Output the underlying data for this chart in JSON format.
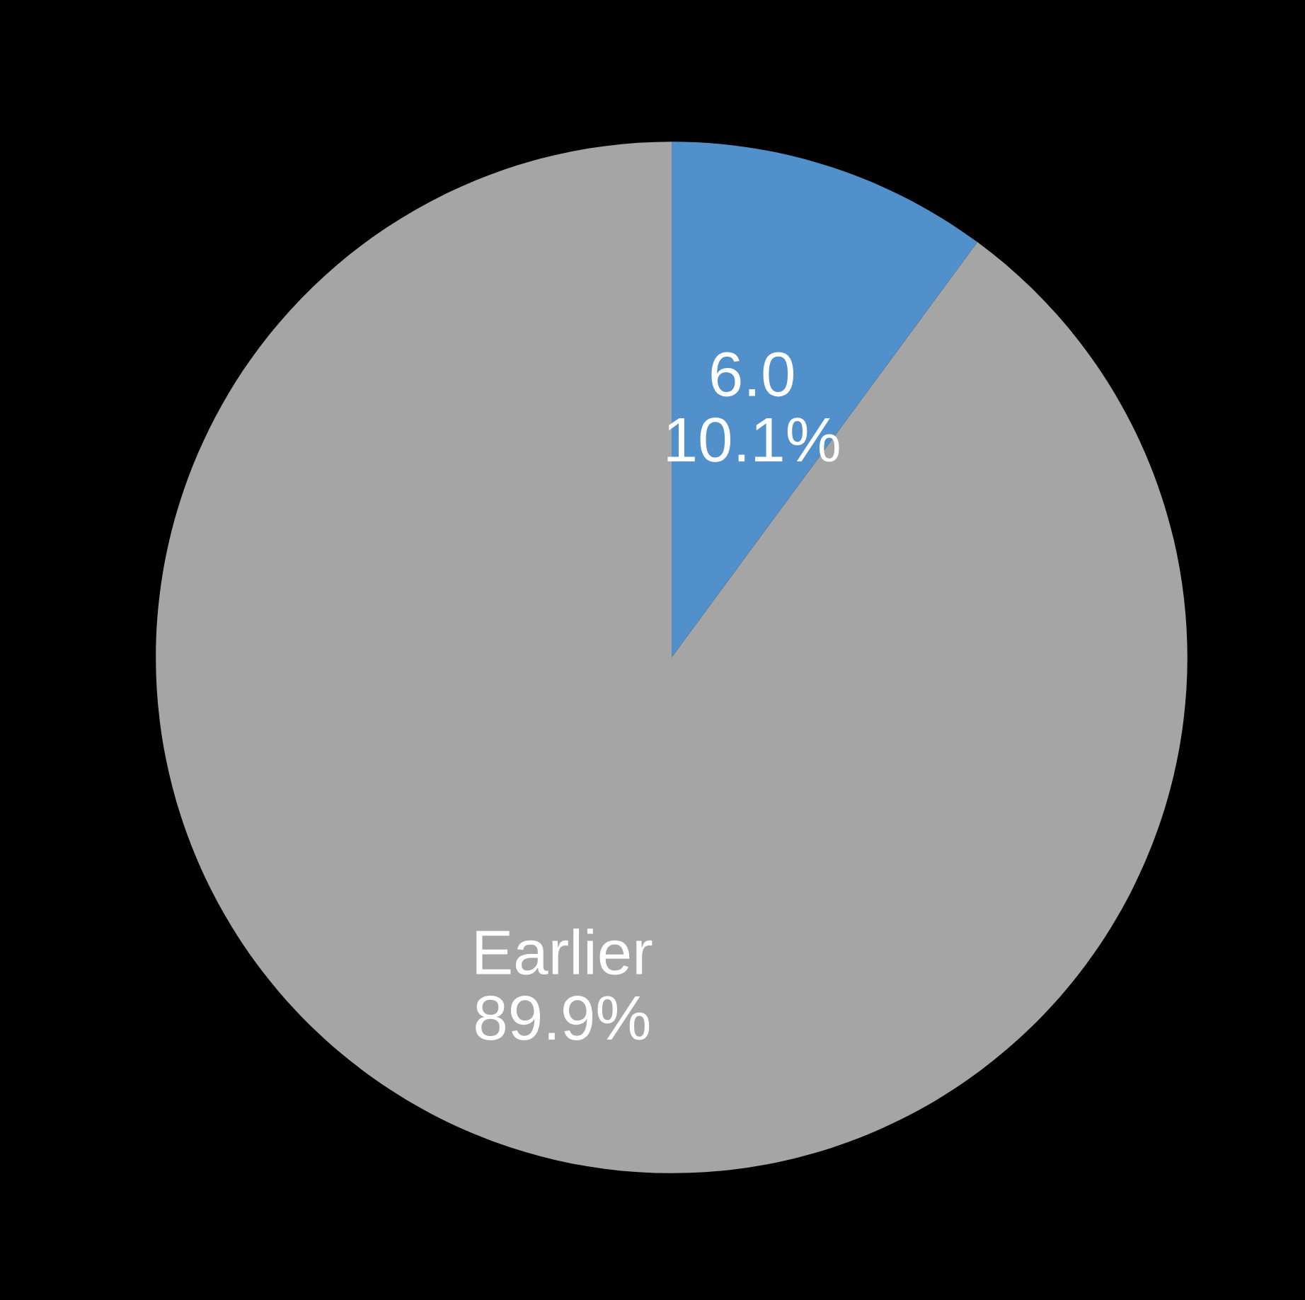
{
  "chart_data": {
    "type": "pie",
    "categories": [
      "6.0",
      "Earlier"
    ],
    "values": [
      10.1,
      89.9
    ],
    "value_labels": [
      "10.1%",
      "89.9%"
    ],
    "colors": [
      "#5290cc",
      "#a5a5a5"
    ]
  }
}
